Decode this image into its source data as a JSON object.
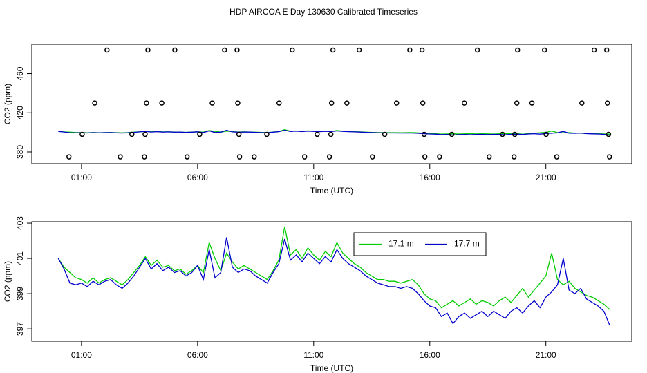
{
  "chart_data": [
    {
      "type": "scatter",
      "title": "HDP AIRCOA E  Day 130630  Calibrated Timeseries",
      "xlabel": "Time (UTC)",
      "ylabel": "CO2 (ppm)",
      "x": [
        2.1,
        3.86,
        5.02,
        7.16,
        7.7,
        10.08,
        11.83,
        12.96,
        15.14,
        15.67,
        18.05,
        19.78,
        20.94,
        23.08,
        23.62,
        1.57,
        3.8,
        4.46,
        6.63,
        7.73,
        9.51,
        11.77,
        12.43,
        14.57,
        15.7,
        17.49,
        19.75,
        20.4,
        22.55,
        23.65,
        1.03,
        3.17,
        3.74,
        6.09,
        7.78,
        8.98,
        11.15,
        11.74,
        14.06,
        15.76,
        16.95,
        19.13,
        19.66,
        21.01,
        23.7,
        0.46,
        2.67,
        3.71,
        5.55,
        7.81,
        8.44,
        10.61,
        11.68,
        13.53,
        15.79,
        16.42,
        18.56,
        19.63,
        21.47,
        23.74
      ],
      "values": [
        484,
        484,
        484,
        484,
        484,
        484,
        484,
        484,
        484,
        484,
        484,
        484,
        484,
        484,
        484,
        430,
        430,
        430,
        430,
        430,
        430,
        430,
        430,
        430,
        430,
        430,
        430,
        430,
        430,
        430,
        398,
        398,
        398,
        398,
        398,
        398,
        398,
        398,
        398,
        398,
        398,
        398,
        398,
        398,
        398,
        375,
        375,
        375,
        375,
        375,
        375,
        375,
        375,
        375,
        375,
        375,
        375,
        375,
        375,
        375
      ],
      "color": "#000000",
      "xlim": [
        -1.14,
        24.7
      ],
      "xticks": [
        {
          "value": 1,
          "label": "01:00"
        },
        {
          "value": 6,
          "label": "06:00"
        },
        {
          "value": 11,
          "label": "11:00"
        },
        {
          "value": 16,
          "label": "16:00"
        },
        {
          "value": 21,
          "label": "21:00"
        }
      ],
      "ylim": [
        368,
        490
      ],
      "yticks": [
        380,
        420,
        460
      ]
    },
    {
      "type": "line",
      "xlabel": "Time (UTC)",
      "ylabel": "CO2 (ppm)",
      "x": [
        0,
        0.25,
        0.5,
        0.75,
        1,
        1.25,
        1.5,
        1.75,
        2,
        2.25,
        2.5,
        2.75,
        3,
        3.25,
        3.5,
        3.75,
        4,
        4.25,
        4.5,
        4.75,
        5,
        5.25,
        5.5,
        5.75,
        6,
        6.25,
        6.5,
        6.75,
        7,
        7.25,
        7.5,
        7.75,
        8,
        8.25,
        8.5,
        8.75,
        9,
        9.25,
        9.5,
        9.75,
        10,
        10.25,
        10.5,
        10.75,
        11,
        11.25,
        11.5,
        11.75,
        12,
        12.25,
        12.5,
        12.75,
        13,
        13.25,
        13.5,
        13.75,
        14,
        14.25,
        14.5,
        14.75,
        15,
        15.25,
        15.5,
        15.75,
        16,
        16.25,
        16.5,
        16.75,
        17,
        17.25,
        17.5,
        17.75,
        18,
        18.25,
        18.5,
        18.75,
        19,
        19.25,
        19.5,
        19.75,
        20,
        20.25,
        20.5,
        20.75,
        21,
        21.25,
        21.5,
        21.75,
        22,
        22.25,
        22.5,
        22.75,
        23,
        23.25,
        23.5,
        23.75
      ],
      "series": [
        {
          "name": "17.1 m",
          "color": "#00cc00",
          "values": [
            401.0,
            400.5,
            400.2,
            399.9,
            399.8,
            399.6,
            399.9,
            399.6,
            399.8,
            399.9,
            399.7,
            399.5,
            399.8,
            400.2,
            400.6,
            401.1,
            400.6,
            400.9,
            400.5,
            400.6,
            400.3,
            400.4,
            400.1,
            400.3,
            400.6,
            400.2,
            401.9,
            401.0,
            400.3,
            401.3,
            400.8,
            400.4,
            400.6,
            400.4,
            400.2,
            400.0,
            399.8,
            400.3,
            400.9,
            402.8,
            401.2,
            401.5,
            401.0,
            401.6,
            401.2,
            400.9,
            401.4,
            401.1,
            401.9,
            401.3,
            401.0,
            400.7,
            400.5,
            400.2,
            400.0,
            399.8,
            399.8,
            399.7,
            399.7,
            399.6,
            399.7,
            399.8,
            399.5,
            399.0,
            398.7,
            398.6,
            398.2,
            398.4,
            398.6,
            398.3,
            398.5,
            398.7,
            398.4,
            398.6,
            398.5,
            398.3,
            398.6,
            398.8,
            398.5,
            398.9,
            399.3,
            398.8,
            399.2,
            399.6,
            400.0,
            401.3,
            399.8,
            399.5,
            399.7,
            399.3,
            399.1,
            398.9,
            398.8,
            398.6,
            398.4,
            398.1
          ]
        },
        {
          "name": "17.7 m",
          "color": "#0000cc",
          "values": [
            401.0,
            400.4,
            399.6,
            399.5,
            399.6,
            399.4,
            399.7,
            399.5,
            399.7,
            399.8,
            399.5,
            399.3,
            399.6,
            400.0,
            400.5,
            401.0,
            400.4,
            400.7,
            400.3,
            400.5,
            400.2,
            400.3,
            400.0,
            400.2,
            400.6,
            399.8,
            401.5,
            399.9,
            400.2,
            402.2,
            400.5,
            400.2,
            400.4,
            400.3,
            400.0,
            399.8,
            399.6,
            400.2,
            400.7,
            402.1,
            400.9,
            401.2,
            400.8,
            401.3,
            401.0,
            400.7,
            401.1,
            400.8,
            401.5,
            401.0,
            400.7,
            400.5,
            400.3,
            400.0,
            399.8,
            399.6,
            399.5,
            399.4,
            399.4,
            399.3,
            399.4,
            399.3,
            399.0,
            398.6,
            398.3,
            398.2,
            397.7,
            397.9,
            397.3,
            397.7,
            397.9,
            397.6,
            397.8,
            398.0,
            397.7,
            398.0,
            397.8,
            397.6,
            398.0,
            398.2,
            397.9,
            398.3,
            398.6,
            398.2,
            398.8,
            399.1,
            399.5,
            401.0,
            399.2,
            399.0,
            399.3,
            398.7,
            398.5,
            398.3,
            398.0,
            397.2
          ]
        }
      ],
      "xlim": [
        -1.14,
        24.7
      ],
      "xticks": [
        {
          "value": 1,
          "label": "01:00"
        },
        {
          "value": 6,
          "label": "06:00"
        },
        {
          "value": 11,
          "label": "11:00"
        },
        {
          "value": 16,
          "label": "16:00"
        },
        {
          "value": 21,
          "label": "21:00"
        }
      ],
      "ylim": [
        396.3,
        403.08
      ],
      "yticks": [
        397,
        399,
        401,
        403
      ],
      "legend": "top-center"
    }
  ]
}
